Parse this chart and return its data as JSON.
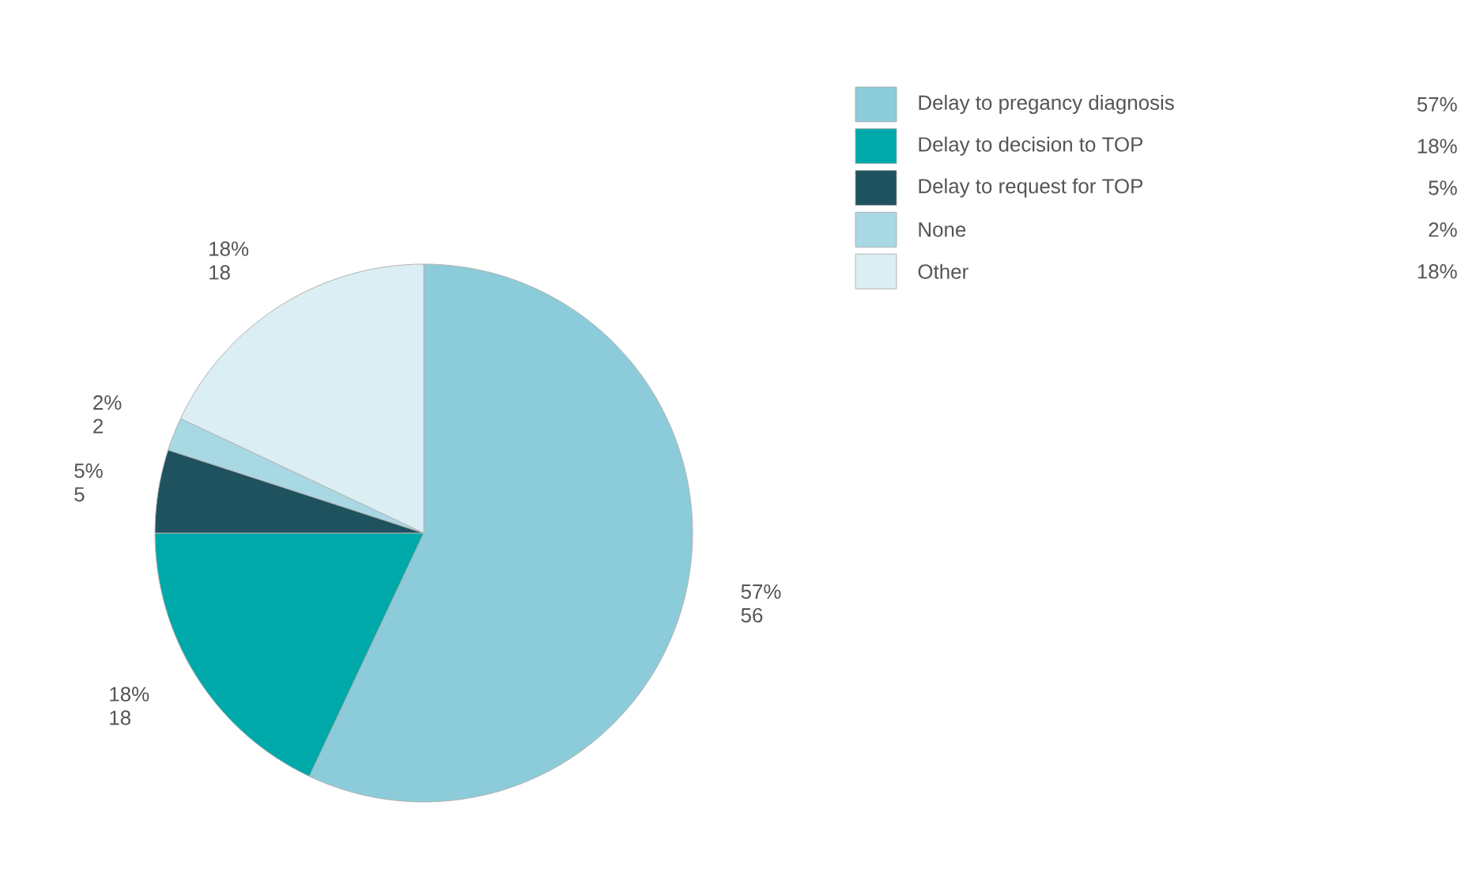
{
  "chart_data": {
    "type": "pie",
    "categories": [
      "Delay to pregancy diagnosis",
      "Delay to decision to TOP",
      "Delay to request for TOP",
      "None",
      "Other"
    ],
    "values": [
      57,
      18,
      5,
      2,
      18
    ],
    "value_labels": [
      "57%",
      "18%",
      "5%",
      "2%",
      "18%"
    ],
    "annotations": [
      "56",
      "18",
      "5",
      "2",
      "18"
    ],
    "colors": [
      "#8ccbd9",
      "#00a9a9",
      "#1e525e",
      "#a8d8e4",
      "#daeef3"
    ],
    "legend": "top right"
  }
}
